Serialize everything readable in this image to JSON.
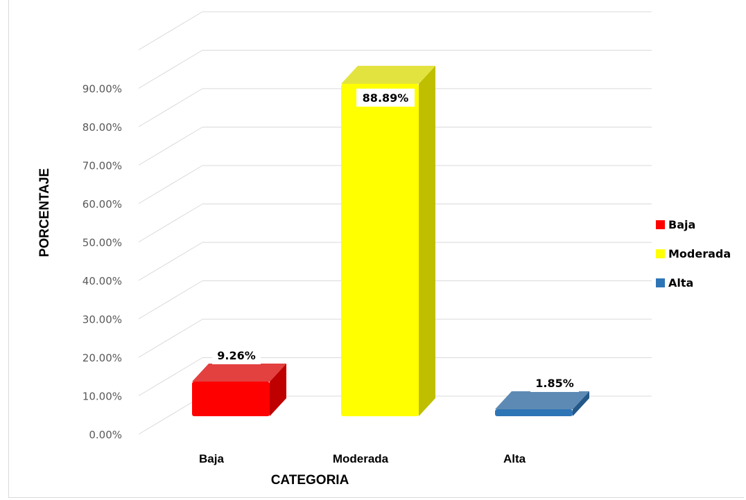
{
  "chart_data": {
    "type": "bar",
    "title": "",
    "xlabel": "CATEGORIA",
    "ylabel": "PORCENTAJE",
    "categories": [
      "Baja",
      "Moderada",
      "Alta"
    ],
    "values": [
      9.26,
      88.89,
      1.85
    ],
    "data_labels": [
      "9.26%",
      "88.89%",
      "1.85%"
    ],
    "colors": [
      "#ff0000",
      "#ffff00",
      "#2e75b6"
    ],
    "ylim": [
      0,
      90
    ],
    "yticks": [
      0,
      10,
      20,
      30,
      40,
      50,
      60,
      70,
      80,
      90
    ],
    "ytick_labels": [
      "0.00%",
      "10.00%",
      "20.00%",
      "30.00%",
      "40.00%",
      "50.00%",
      "60.00%",
      "70.00%",
      "80.00%",
      "90.00%"
    ],
    "grid": true,
    "style": "3d-column",
    "legend": {
      "position": "right",
      "entries": [
        "Baja",
        "Moderada",
        "Alta"
      ]
    }
  }
}
